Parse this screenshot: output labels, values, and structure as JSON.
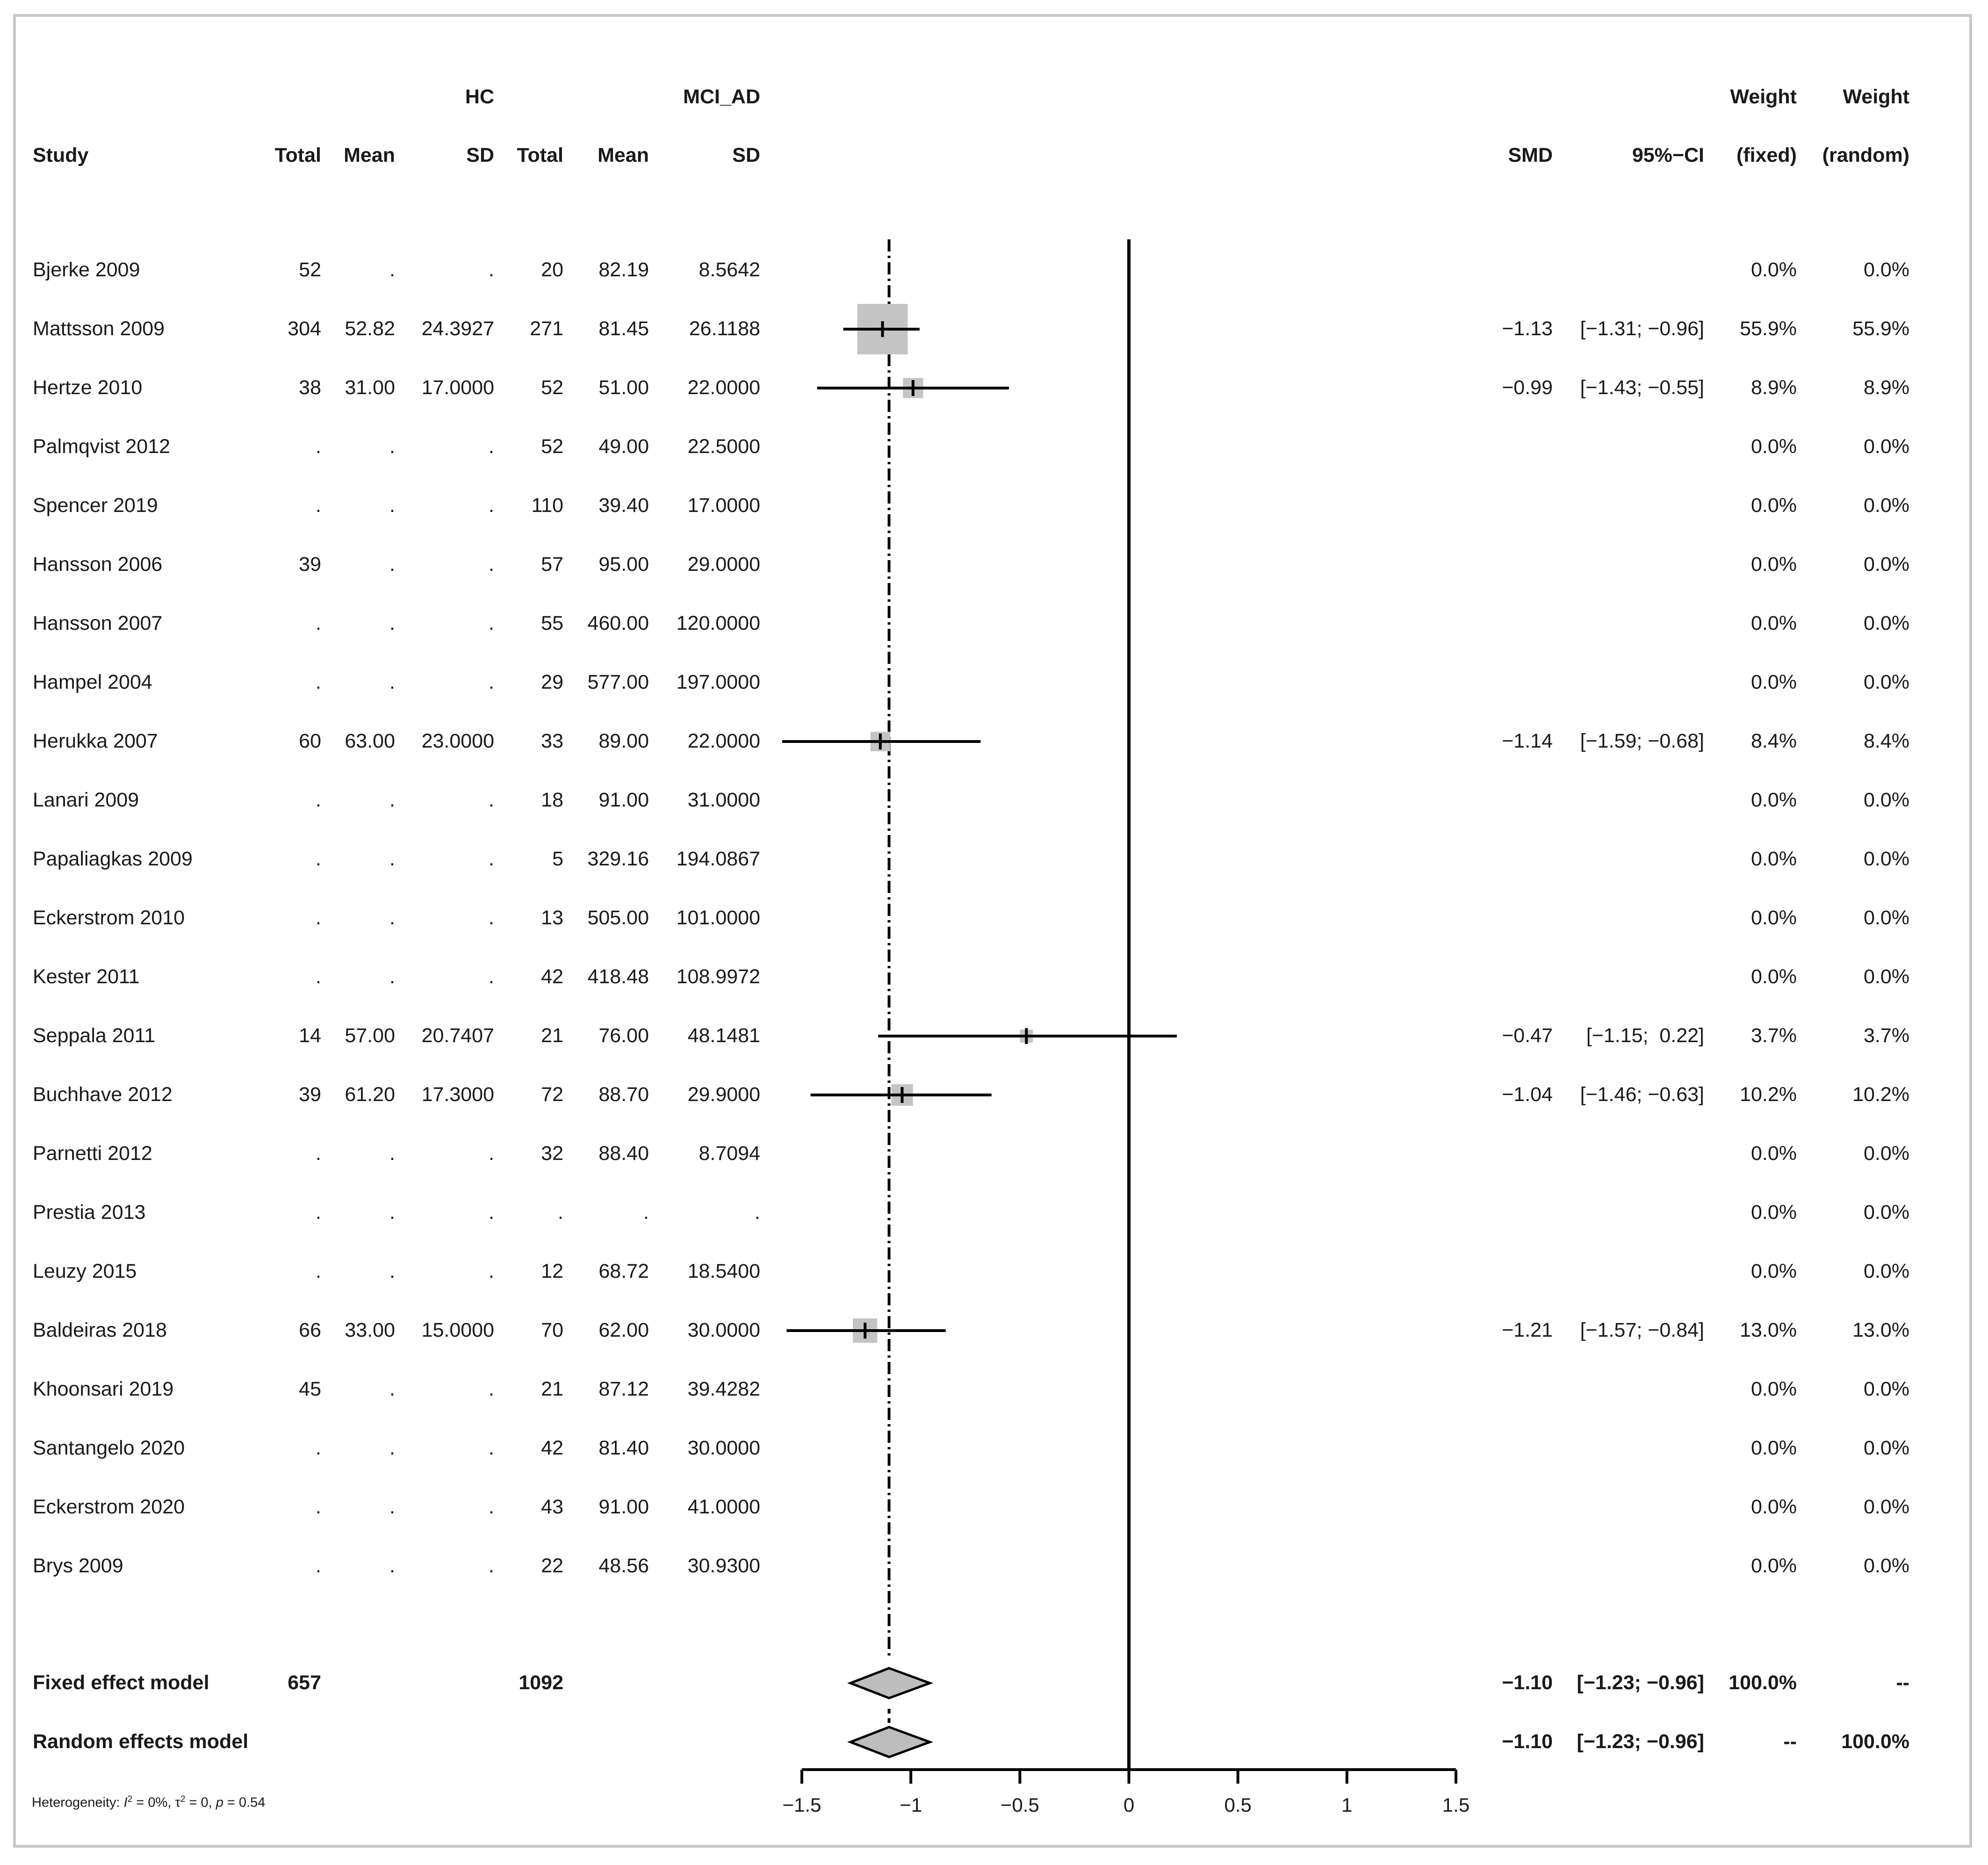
{
  "header": {
    "group1": "HC",
    "group2": "MCI_AD",
    "weight_fixed_top": "Weight",
    "weight_random_top": "Weight",
    "study": "Study",
    "total1": "Total",
    "mean1": "Mean",
    "sd1": "SD",
    "total2": "Total",
    "mean2": "Mean",
    "sd2": "SD",
    "smd": "SMD",
    "ci": "95%−CI",
    "wf": "(fixed)",
    "wr": "(random)"
  },
  "rows": [
    {
      "study": "Bjerke 2009",
      "n1": "52",
      "m1": ".",
      "s1": ".",
      "n2": "20",
      "m2": "82.19",
      "s2": "8.5642",
      "smd": "",
      "ci": "",
      "wf": "0.0%",
      "wr": "0.0%"
    },
    {
      "study": "Mattsson 2009",
      "n1": "304",
      "m1": "52.82",
      "s1": "24.3927",
      "n2": "271",
      "m2": "81.45",
      "s2": "26.1188",
      "smd": "−1.13",
      "ci": "[−1.31; −0.96]",
      "wf": "55.9%",
      "wr": "55.9%"
    },
    {
      "study": "Hertze 2010",
      "n1": "38",
      "m1": "31.00",
      "s1": "17.0000",
      "n2": "52",
      "m2": "51.00",
      "s2": "22.0000",
      "smd": "−0.99",
      "ci": "[−1.43; −0.55]",
      "wf": "8.9%",
      "wr": "8.9%"
    },
    {
      "study": "Palmqvist 2012",
      "n1": ".",
      "m1": ".",
      "s1": ".",
      "n2": "52",
      "m2": "49.00",
      "s2": "22.5000",
      "smd": "",
      "ci": "",
      "wf": "0.0%",
      "wr": "0.0%"
    },
    {
      "study": "Spencer 2019",
      "n1": ".",
      "m1": ".",
      "s1": ".",
      "n2": "110",
      "m2": "39.40",
      "s2": "17.0000",
      "smd": "",
      "ci": "",
      "wf": "0.0%",
      "wr": "0.0%"
    },
    {
      "study": "Hansson 2006",
      "n1": "39",
      "m1": ".",
      "s1": ".",
      "n2": "57",
      "m2": "95.00",
      "s2": "29.0000",
      "smd": "",
      "ci": "",
      "wf": "0.0%",
      "wr": "0.0%"
    },
    {
      "study": "Hansson 2007",
      "n1": ".",
      "m1": ".",
      "s1": ".",
      "n2": "55",
      "m2": "460.00",
      "s2": "120.0000",
      "smd": "",
      "ci": "",
      "wf": "0.0%",
      "wr": "0.0%"
    },
    {
      "study": "Hampel 2004",
      "n1": ".",
      "m1": ".",
      "s1": ".",
      "n2": "29",
      "m2": "577.00",
      "s2": "197.0000",
      "smd": "",
      "ci": "",
      "wf": "0.0%",
      "wr": "0.0%"
    },
    {
      "study": "Herukka 2007",
      "n1": "60",
      "m1": "63.00",
      "s1": "23.0000",
      "n2": "33",
      "m2": "89.00",
      "s2": "22.0000",
      "smd": "−1.14",
      "ci": "[−1.59; −0.68]",
      "wf": "8.4%",
      "wr": "8.4%"
    },
    {
      "study": "Lanari 2009",
      "n1": ".",
      "m1": ".",
      "s1": ".",
      "n2": "18",
      "m2": "91.00",
      "s2": "31.0000",
      "smd": "",
      "ci": "",
      "wf": "0.0%",
      "wr": "0.0%"
    },
    {
      "study": "Papaliagkas 2009",
      "n1": ".",
      "m1": ".",
      "s1": ".",
      "n2": "5",
      "m2": "329.16",
      "s2": "194.0867",
      "smd": "",
      "ci": "",
      "wf": "0.0%",
      "wr": "0.0%"
    },
    {
      "study": "Eckerstrom 2010",
      "n1": ".",
      "m1": ".",
      "s1": ".",
      "n2": "13",
      "m2": "505.00",
      "s2": "101.0000",
      "smd": "",
      "ci": "",
      "wf": "0.0%",
      "wr": "0.0%"
    },
    {
      "study": "Kester 2011",
      "n1": ".",
      "m1": ".",
      "s1": ".",
      "n2": "42",
      "m2": "418.48",
      "s2": "108.9972",
      "smd": "",
      "ci": "",
      "wf": "0.0%",
      "wr": "0.0%"
    },
    {
      "study": "Seppala 2011",
      "n1": "14",
      "m1": "57.00",
      "s1": "20.7407",
      "n2": "21",
      "m2": "76.00",
      "s2": "48.1481",
      "smd": "−0.47",
      "ci": "[−1.15;  0.22]",
      "wf": "3.7%",
      "wr": "3.7%"
    },
    {
      "study": "Buchhave 2012",
      "n1": "39",
      "m1": "61.20",
      "s1": "17.3000",
      "n2": "72",
      "m2": "88.70",
      "s2": "29.9000",
      "smd": "−1.04",
      "ci": "[−1.46; −0.63]",
      "wf": "10.2%",
      "wr": "10.2%"
    },
    {
      "study": "Parnetti 2012",
      "n1": ".",
      "m1": ".",
      "s1": ".",
      "n2": "32",
      "m2": "88.40",
      "s2": "8.7094",
      "smd": "",
      "ci": "",
      "wf": "0.0%",
      "wr": "0.0%"
    },
    {
      "study": "Prestia 2013",
      "n1": ".",
      "m1": ".",
      "s1": ".",
      "n2": ".",
      "m2": ".",
      "s2": ".",
      "smd": "",
      "ci": "",
      "wf": "0.0%",
      "wr": "0.0%"
    },
    {
      "study": "Leuzy 2015",
      "n1": ".",
      "m1": ".",
      "s1": ".",
      "n2": "12",
      "m2": "68.72",
      "s2": "18.5400",
      "smd": "",
      "ci": "",
      "wf": "0.0%",
      "wr": "0.0%"
    },
    {
      "study": "Baldeiras 2018",
      "n1": "66",
      "m1": "33.00",
      "s1": "15.0000",
      "n2": "70",
      "m2": "62.00",
      "s2": "30.0000",
      "smd": "−1.21",
      "ci": "[−1.57; −0.84]",
      "wf": "13.0%",
      "wr": "13.0%"
    },
    {
      "study": "Khoonsari 2019",
      "n1": "45",
      "m1": ".",
      "s1": ".",
      "n2": "21",
      "m2": "87.12",
      "s2": "39.4282",
      "smd": "",
      "ci": "",
      "wf": "0.0%",
      "wr": "0.0%"
    },
    {
      "study": "Santangelo 2020",
      "n1": ".",
      "m1": ".",
      "s1": ".",
      "n2": "42",
      "m2": "81.40",
      "s2": "30.0000",
      "smd": "",
      "ci": "",
      "wf": "0.0%",
      "wr": "0.0%"
    },
    {
      "study": "Eckerstrom 2020",
      "n1": ".",
      "m1": ".",
      "s1": ".",
      "n2": "43",
      "m2": "91.00",
      "s2": "41.0000",
      "smd": "",
      "ci": "",
      "wf": "0.0%",
      "wr": "0.0%"
    },
    {
      "study": "Brys 2009",
      "n1": ".",
      "m1": ".",
      "s1": ".",
      "n2": "22",
      "m2": "48.56",
      "s2": "30.9300",
      "smd": "",
      "ci": "",
      "wf": "0.0%",
      "wr": "0.0%"
    }
  ],
  "summary": [
    {
      "label": "Fixed effect model",
      "n1": "657",
      "n2": "1092",
      "smd": "−1.10",
      "ci": "[−1.23; −0.96]",
      "wf": "100.0%",
      "wr": "--"
    },
    {
      "label": "Random effects model",
      "n1": "",
      "n2": "",
      "smd": "−1.10",
      "ci": "[−1.23; −0.96]",
      "wf": "--",
      "wr": "100.0%"
    }
  ],
  "heterogeneity": {
    "prefix": "Heterogeneity: ",
    "i2_symbol": "I",
    "i2_sup": "2",
    "i2_value": " = 0%, ",
    "tau_symbol": "τ",
    "tau_sup": "2",
    "tau_value": " = 0, ",
    "p_symbol": "p",
    "p_value": " = 0.54"
  },
  "chart_data": {
    "type": "forest",
    "xlim": [
      -1.5,
      1.5
    ],
    "ticks": [
      -1.5,
      -1,
      -0.5,
      0,
      0.5,
      1,
      1.5
    ],
    "tick_labels": [
      "−1.5",
      "−1",
      "−0.5",
      "0",
      "0.5",
      "1",
      "1.5"
    ],
    "null_line": 0,
    "pooled_line": -1.1,
    "studies": [
      {
        "row": 1,
        "smd": -1.13,
        "lower": -1.31,
        "upper": -0.96,
        "weight": 55.9
      },
      {
        "row": 2,
        "smd": -0.99,
        "lower": -1.43,
        "upper": -0.55,
        "weight": 8.9
      },
      {
        "row": 8,
        "smd": -1.14,
        "lower": -1.59,
        "upper": -0.68,
        "weight": 8.4
      },
      {
        "row": 13,
        "smd": -0.47,
        "lower": -1.15,
        "upper": 0.22,
        "weight": 3.7
      },
      {
        "row": 14,
        "smd": -1.04,
        "lower": -1.46,
        "upper": -0.63,
        "weight": 10.2
      },
      {
        "row": 18,
        "smd": -1.21,
        "lower": -1.57,
        "upper": -0.84,
        "weight": 13.0
      }
    ],
    "diamonds": [
      {
        "summary": 0,
        "est": -1.1,
        "lower": -1.23,
        "upper": -0.96
      },
      {
        "summary": 1,
        "est": -1.1,
        "lower": -1.23,
        "upper": -0.96
      }
    ],
    "colors": {
      "box": "#c4c4c4",
      "diamond": "#bdbdbd",
      "line": "#000000"
    }
  }
}
